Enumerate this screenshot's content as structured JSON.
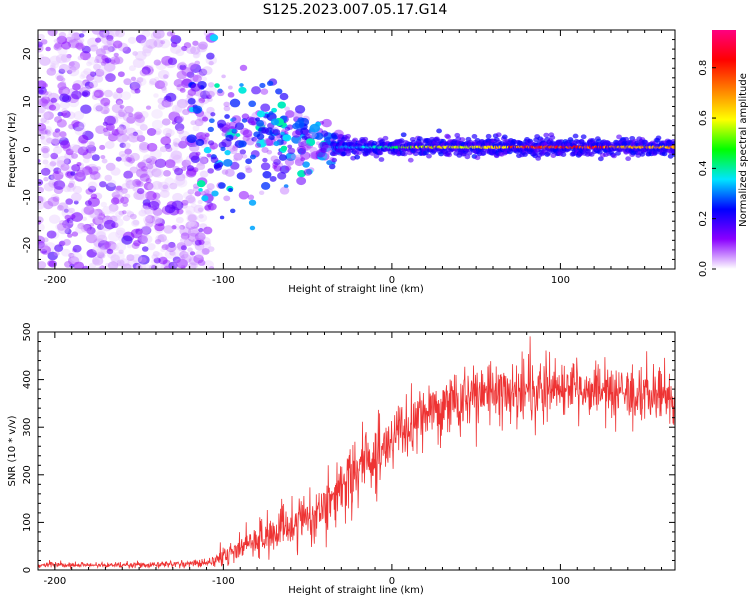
{
  "figure_title": "S125.2023.007.05.17.G14",
  "chart_data": [
    {
      "type": "heatmap",
      "xlabel": "Height of straight line (km)",
      "ylabel": "Frequency (Hz)",
      "xlim": [
        -210,
        168
      ],
      "ylim": [
        -25,
        25
      ],
      "xticks": [
        -200,
        -100,
        0,
        100
      ],
      "xtick_labels": [
        "-200",
        "-100",
        "0",
        "100"
      ],
      "yticks": [
        -20,
        -10,
        0,
        10,
        20
      ],
      "ytick_labels": [
        "-20",
        "-10",
        "0",
        "10",
        "20"
      ],
      "colorbar": {
        "label": "Normalized spectral amplitude",
        "range": [
          0.0,
          0.95
        ],
        "ticks": [
          0.0,
          0.2,
          0.4,
          0.6,
          0.8
        ],
        "tick_labels": [
          "0.0",
          "0.2",
          "0.4",
          "0.6",
          "0.8"
        ],
        "colors": [
          "#ffffff",
          "#8a00ff",
          "#0000ff",
          "#00e5ff",
          "#00ff00",
          "#ffff00",
          "#ff8000",
          "#ff0000",
          "#ff0080"
        ]
      },
      "features": {
        "noise_region_x": [
          -210,
          -115
        ],
        "transition_region_x": [
          -120,
          -30
        ],
        "signal_band_x": [
          -35,
          168
        ],
        "signal_center_hz": 0.5,
        "signal_peak_amplitude": 0.9
      }
    },
    {
      "type": "line",
      "xlabel": "Height of straight line (km)",
      "ylabel": "SNR (10 * v/v)",
      "xlim": [
        -210,
        168
      ],
      "ylim": [
        0,
        500
      ],
      "xticks": [
        -200,
        -100,
        0,
        100
      ],
      "xtick_labels": [
        "-200",
        "-100",
        "0",
        "100"
      ],
      "yticks": [
        0,
        100,
        200,
        300,
        400,
        500
      ],
      "ytick_labels": [
        "0",
        "100",
        "200",
        "300",
        "400",
        "500"
      ],
      "color": "#ee3333",
      "envelope": {
        "x": [
          -210,
          -150,
          -110,
          -100,
          -80,
          -60,
          -40,
          -20,
          0,
          20,
          40,
          60,
          80,
          100,
          120,
          140,
          168
        ],
        "y_mean": [
          10,
          10,
          15,
          30,
          60,
          90,
          130,
          210,
          270,
          320,
          355,
          370,
          375,
          375,
          370,
          365,
          370
        ],
        "y_spread": [
          5,
          5,
          8,
          20,
          35,
          45,
          55,
          60,
          60,
          55,
          55,
          55,
          55,
          55,
          55,
          55,
          55
        ]
      }
    }
  ]
}
